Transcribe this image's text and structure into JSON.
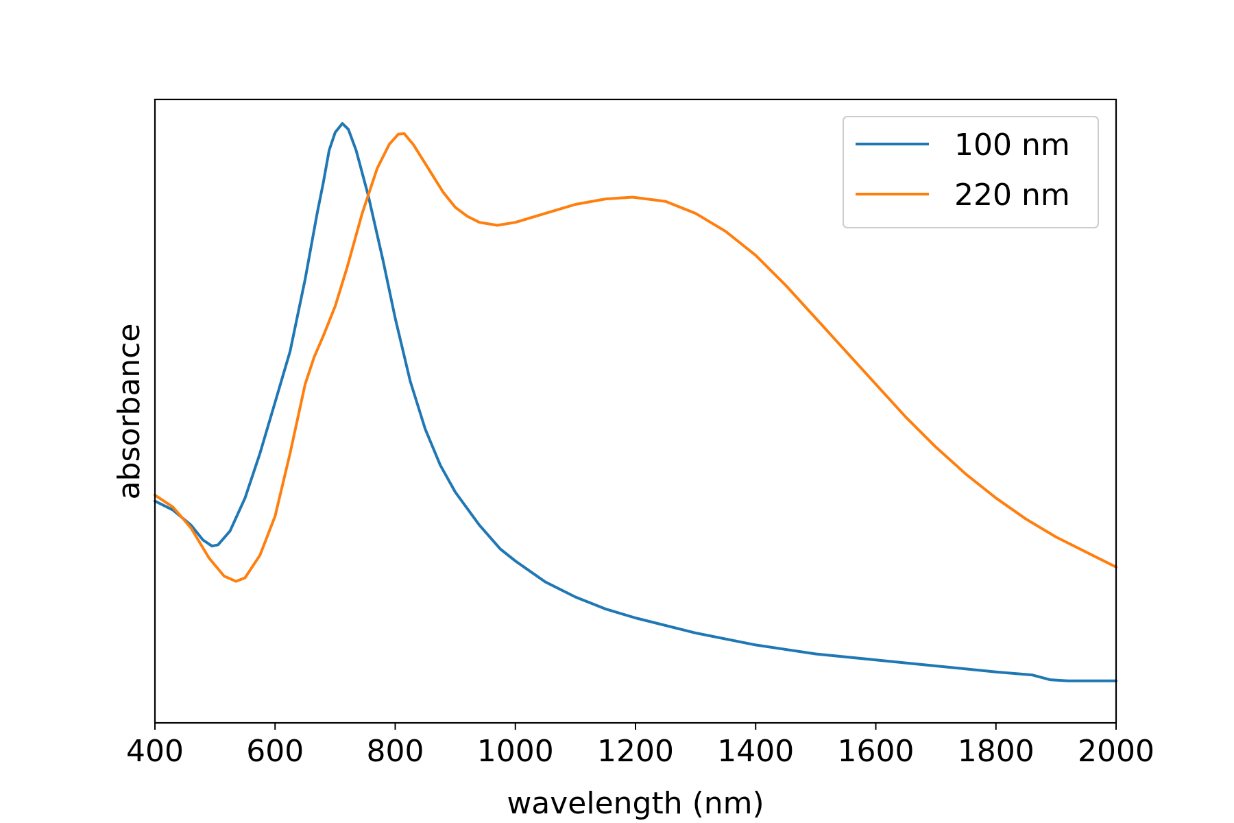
{
  "chart_data": {
    "type": "line",
    "xlabel": "wavelength (nm)",
    "ylabel": "absorbance",
    "xlim": [
      400,
      2000
    ],
    "ylim": [
      0,
      1.04
    ],
    "x_ticks": [
      "400",
      "600",
      "800",
      "1000",
      "1200",
      "1400",
      "1600",
      "1800",
      "2000"
    ],
    "y_ticks_shown": false,
    "grid": false,
    "legend_position": "top-right",
    "series": [
      {
        "name": "100 nm",
        "color": "#1f77b4",
        "points": [
          [
            400,
            0.37
          ],
          [
            430,
            0.355
          ],
          [
            460,
            0.33
          ],
          [
            480,
            0.305
          ],
          [
            495,
            0.295
          ],
          [
            505,
            0.297
          ],
          [
            525,
            0.32
          ],
          [
            550,
            0.375
          ],
          [
            575,
            0.45
          ],
          [
            600,
            0.535
          ],
          [
            625,
            0.62
          ],
          [
            650,
            0.74
          ],
          [
            670,
            0.85
          ],
          [
            680,
            0.9
          ],
          [
            690,
            0.955
          ],
          [
            700,
            0.985
          ],
          [
            712,
            1.0
          ],
          [
            722,
            0.99
          ],
          [
            735,
            0.955
          ],
          [
            755,
            0.88
          ],
          [
            780,
            0.77
          ],
          [
            800,
            0.675
          ],
          [
            825,
            0.57
          ],
          [
            850,
            0.49
          ],
          [
            875,
            0.43
          ],
          [
            900,
            0.385
          ],
          [
            940,
            0.33
          ],
          [
            975,
            0.29
          ],
          [
            1000,
            0.27
          ],
          [
            1050,
            0.235
          ],
          [
            1100,
            0.21
          ],
          [
            1150,
            0.19
          ],
          [
            1200,
            0.175
          ],
          [
            1300,
            0.15
          ],
          [
            1400,
            0.13
          ],
          [
            1500,
            0.115
          ],
          [
            1600,
            0.105
          ],
          [
            1700,
            0.095
          ],
          [
            1800,
            0.085
          ],
          [
            1860,
            0.08
          ],
          [
            1890,
            0.072
          ],
          [
            1920,
            0.07
          ],
          [
            1960,
            0.07
          ],
          [
            2000,
            0.07
          ]
        ]
      },
      {
        "name": "220 nm",
        "color": "#ff7f0e",
        "points": [
          [
            400,
            0.38
          ],
          [
            430,
            0.36
          ],
          [
            460,
            0.325
          ],
          [
            490,
            0.275
          ],
          [
            515,
            0.245
          ],
          [
            535,
            0.236
          ],
          [
            550,
            0.242
          ],
          [
            575,
            0.28
          ],
          [
            600,
            0.345
          ],
          [
            625,
            0.45
          ],
          [
            650,
            0.565
          ],
          [
            665,
            0.61
          ],
          [
            680,
            0.645
          ],
          [
            700,
            0.695
          ],
          [
            720,
            0.76
          ],
          [
            745,
            0.85
          ],
          [
            770,
            0.925
          ],
          [
            790,
            0.965
          ],
          [
            805,
            0.982
          ],
          [
            815,
            0.983
          ],
          [
            830,
            0.965
          ],
          [
            855,
            0.925
          ],
          [
            880,
            0.885
          ],
          [
            900,
            0.86
          ],
          [
            920,
            0.845
          ],
          [
            940,
            0.835
          ],
          [
            970,
            0.83
          ],
          [
            1000,
            0.835
          ],
          [
            1050,
            0.85
          ],
          [
            1100,
            0.865
          ],
          [
            1150,
            0.874
          ],
          [
            1195,
            0.877
          ],
          [
            1250,
            0.87
          ],
          [
            1300,
            0.85
          ],
          [
            1350,
            0.82
          ],
          [
            1400,
            0.78
          ],
          [
            1450,
            0.73
          ],
          [
            1500,
            0.675
          ],
          [
            1550,
            0.62
          ],
          [
            1600,
            0.565
          ],
          [
            1650,
            0.51
          ],
          [
            1700,
            0.46
          ],
          [
            1750,
            0.415
          ],
          [
            1800,
            0.375
          ],
          [
            1850,
            0.34
          ],
          [
            1900,
            0.31
          ],
          [
            1950,
            0.285
          ],
          [
            2000,
            0.26
          ]
        ]
      }
    ]
  }
}
